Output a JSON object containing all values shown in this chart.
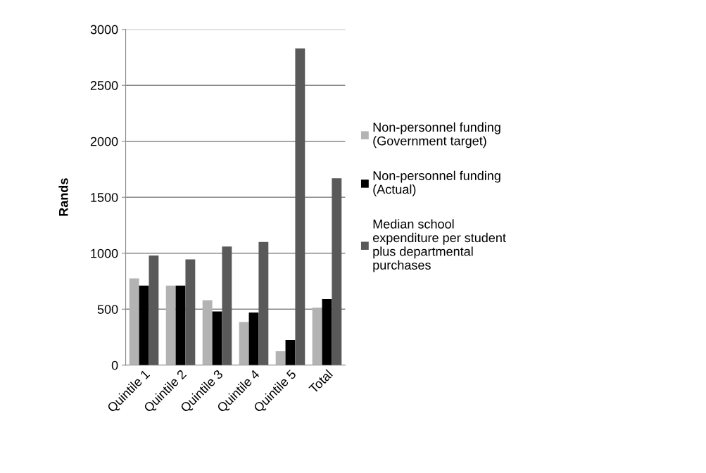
{
  "chart_data": {
    "type": "bar",
    "ylabel": "Rands",
    "categories": [
      "Quintile 1",
      "Quintile 2",
      "Quintile 3",
      "Quintile 4",
      "Quintile 5",
      "Total"
    ],
    "series": [
      {
        "name": "Non-personnel funding\n(Government target)",
        "color": "#b3b3b3",
        "values": [
          775,
          710,
          580,
          385,
          125,
          515
        ]
      },
      {
        "name": "Non-personnel funding\n(Actual)",
        "color": "#000000",
        "values": [
          710,
          710,
          480,
          470,
          225,
          590
        ]
      },
      {
        "name": "Median school\nexpenditure per student\nplus departmental\npurchases",
        "color": "#595959",
        "values": [
          980,
          945,
          1060,
          1100,
          2830,
          1670
        ]
      }
    ],
    "ylim": [
      0,
      3000
    ],
    "yticks": [
      0,
      500,
      1000,
      1500,
      2000,
      2500,
      3000
    ],
    "grid": "y",
    "legend": "right"
  }
}
